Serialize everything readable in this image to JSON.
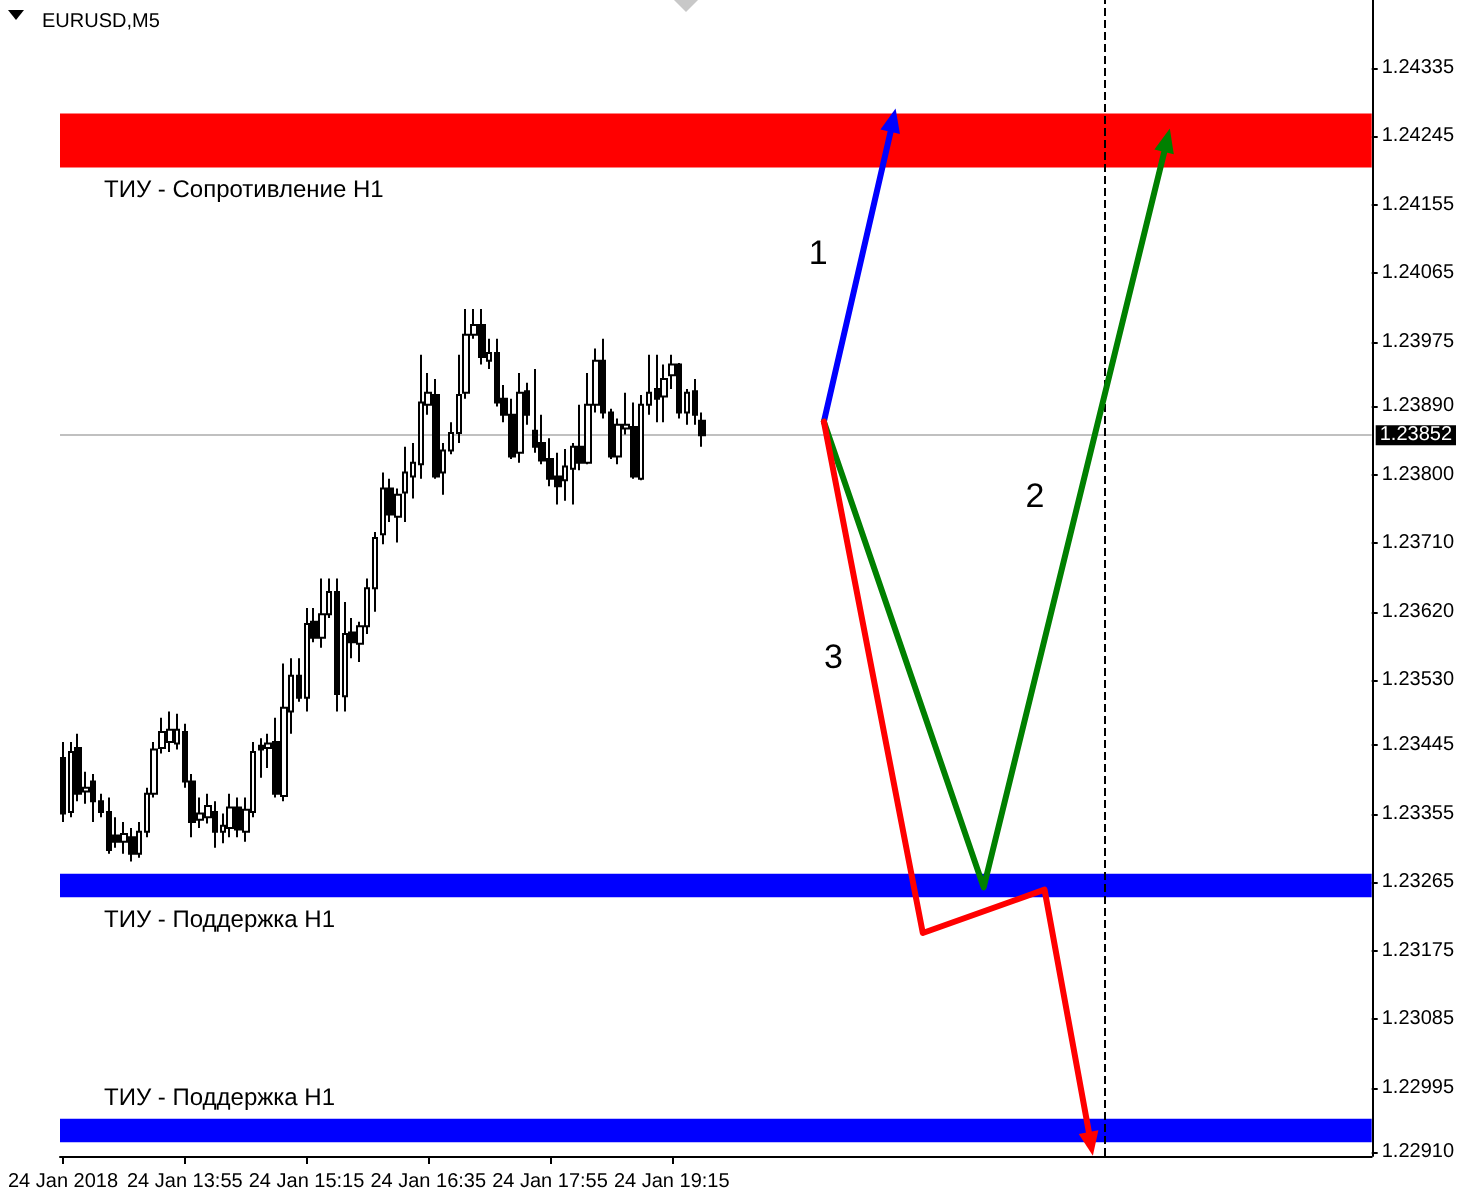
{
  "chart_data": {
    "type": "candlestick",
    "title": "EURUSD,M5",
    "color": "#000000",
    "x": [
      "2018-01-24T12:35",
      "2018-01-24T12:40",
      "2018-01-24T12:45",
      "2018-01-24T12:50",
      "2018-01-24T12:55",
      "2018-01-24T13:00",
      "2018-01-24T13:05",
      "2018-01-24T13:10",
      "2018-01-24T13:15",
      "2018-01-24T13:20",
      "2018-01-24T13:25",
      "2018-01-24T13:30",
      "2018-01-24T13:35",
      "2018-01-24T13:40",
      "2018-01-24T13:45",
      "2018-01-24T13:50",
      "2018-01-24T13:55",
      "2018-01-24T14:00",
      "2018-01-24T14:05",
      "2018-01-24T14:10",
      "2018-01-24T14:15",
      "2018-01-24T14:20",
      "2018-01-24T14:25",
      "2018-01-24T14:30",
      "2018-01-24T14:35",
      "2018-01-24T14:40",
      "2018-01-24T14:45",
      "2018-01-24T14:50",
      "2018-01-24T14:55",
      "2018-01-24T15:00",
      "2018-01-24T15:05",
      "2018-01-24T15:10",
      "2018-01-24T15:15",
      "2018-01-24T15:20",
      "2018-01-24T15:25",
      "2018-01-24T15:30",
      "2018-01-24T15:35",
      "2018-01-24T15:40",
      "2018-01-24T15:45",
      "2018-01-24T15:50",
      "2018-01-24T15:55",
      "2018-01-24T16:00",
      "2018-01-24T16:05",
      "2018-01-24T16:10",
      "2018-01-24T16:15",
      "2018-01-24T16:20",
      "2018-01-24T16:25",
      "2018-01-24T16:30",
      "2018-01-24T16:35",
      "2018-01-24T16:40",
      "2018-01-24T16:45",
      "2018-01-24T16:50",
      "2018-01-24T16:55",
      "2018-01-24T17:00",
      "2018-01-24T17:05",
      "2018-01-24T17:10",
      "2018-01-24T17:15",
      "2018-01-24T17:20",
      "2018-01-24T17:25",
      "2018-01-24T17:30",
      "2018-01-24T17:35",
      "2018-01-24T17:40",
      "2018-01-24T17:45",
      "2018-01-24T17:50",
      "2018-01-24T17:55",
      "2018-01-24T18:00",
      "2018-01-24T18:05",
      "2018-01-24T18:10",
      "2018-01-24T18:15",
      "2018-01-24T18:20",
      "2018-01-24T18:25",
      "2018-01-24T18:30",
      "2018-01-24T18:35",
      "2018-01-24T18:40",
      "2018-01-24T18:45",
      "2018-01-24T18:50",
      "2018-01-24T18:55",
      "2018-01-24T19:00",
      "2018-01-24T19:05",
      "2018-01-24T19:10",
      "2018-01-24T19:15",
      "2018-01-24T19:20",
      "2018-01-24T19:25",
      "2018-01-24T19:30",
      "2018-01-24T19:35"
    ],
    "ohlc": [
      [
        1.23428,
        1.23449,
        1.23344,
        1.23355
      ],
      [
        1.23357,
        1.23449,
        1.2335,
        1.23436
      ],
      [
        1.23441,
        1.2346,
        1.23371,
        1.23381
      ],
      [
        1.23384,
        1.2341,
        1.23368,
        1.23389
      ],
      [
        1.23397,
        1.23407,
        1.23344,
        1.23371
      ],
      [
        1.23371,
        1.23381,
        1.2335,
        1.23357
      ],
      [
        1.23357,
        1.23376,
        1.23302,
        1.23307
      ],
      [
        1.23326,
        1.2335,
        1.2331,
        1.23318
      ],
      [
        1.23318,
        1.23344,
        1.23302,
        1.23328
      ],
      [
        1.23324,
        1.23336,
        1.23292,
        1.23302
      ],
      [
        1.23302,
        1.23344,
        1.23297,
        1.23331
      ],
      [
        1.23331,
        1.23389,
        1.23324,
        1.23381
      ],
      [
        1.23381,
        1.23449,
        1.23376,
        1.23439
      ],
      [
        1.23441,
        1.23481,
        1.23434,
        1.23462
      ],
      [
        1.23449,
        1.23489,
        1.23436,
        1.23465
      ],
      [
        1.23447,
        1.23486,
        1.23439,
        1.23465
      ],
      [
        1.23462,
        1.23473,
        1.23389,
        1.23397
      ],
      [
        1.23397,
        1.23407,
        1.23324,
        1.23344
      ],
      [
        1.23347,
        1.23376,
        1.23336,
        1.23355
      ],
      [
        1.2335,
        1.23381,
        1.23342,
        1.23365
      ],
      [
        1.23357,
        1.23371,
        1.2331,
        1.23331
      ],
      [
        1.23331,
        1.23355,
        1.23316,
        1.23339
      ],
      [
        1.23336,
        1.23381,
        1.23324,
        1.23363
      ],
      [
        1.23363,
        1.23376,
        1.23324,
        1.23334
      ],
      [
        1.23331,
        1.23376,
        1.23318,
        1.2336
      ],
      [
        1.23357,
        1.23449,
        1.2335,
        1.23436
      ],
      [
        1.23444,
        1.23454,
        1.23402,
        1.23439
      ],
      [
        1.23441,
        1.2346,
        1.23415,
        1.23447
      ],
      [
        1.23449,
        1.23481,
        1.23376,
        1.23381
      ],
      [
        1.23378,
        1.23552,
        1.23371,
        1.23494
      ],
      [
        1.23489,
        1.23559,
        1.2346,
        1.23536
      ],
      [
        1.23536,
        1.23559,
        1.23502,
        1.23507
      ],
      [
        1.23507,
        1.23625,
        1.23489,
        1.23604
      ],
      [
        1.23607,
        1.23625,
        1.2358,
        1.23586
      ],
      [
        1.23586,
        1.23664,
        1.23573,
        1.23617
      ],
      [
        1.23617,
        1.23664,
        1.23612,
        1.23646
      ],
      [
        1.23646,
        1.23664,
        1.23489,
        1.23512
      ],
      [
        1.23509,
        1.23633,
        1.23489,
        1.23591
      ],
      [
        1.23593,
        1.23612,
        1.23559,
        1.2358
      ],
      [
        1.23578,
        1.23607,
        1.23554,
        1.23601
      ],
      [
        1.23601,
        1.23664,
        1.23591,
        1.23651
      ],
      [
        1.23651,
        1.23725,
        1.2362,
        1.23717
      ],
      [
        1.23722,
        1.23803,
        1.23709,
        1.23782
      ],
      [
        1.23782,
        1.23795,
        1.23738,
        1.23748
      ],
      [
        1.23745,
        1.23782,
        1.23711,
        1.23774
      ],
      [
        1.23777,
        1.23837,
        1.23738,
        1.23803
      ],
      [
        1.23798,
        1.23842,
        1.23769,
        1.23816
      ],
      [
        1.23814,
        1.23958,
        1.23795,
        1.23895
      ],
      [
        1.23892,
        1.23934,
        1.23879,
        1.23908
      ],
      [
        1.23905,
        1.23926,
        1.23795,
        1.23798
      ],
      [
        1.23803,
        1.23842,
        1.23774,
        1.23832
      ],
      [
        1.23832,
        1.23869,
        1.23827,
        1.23855
      ],
      [
        1.23855,
        1.23958,
        1.23842,
        1.23905
      ],
      [
        1.23908,
        1.24018,
        1.239,
        1.23984
      ],
      [
        1.23984,
        1.24018,
        1.23979,
        1.23997
      ],
      [
        1.23997,
        1.24018,
        1.23945,
        1.23955
      ],
      [
        1.2395,
        1.23979,
        1.23939,
        1.2396
      ],
      [
        1.2396,
        1.23979,
        1.2389,
        1.23895
      ],
      [
        1.239,
        1.23918,
        1.23869,
        1.23879
      ],
      [
        1.23879,
        1.239,
        1.23821,
        1.23824
      ],
      [
        1.23829,
        1.23934,
        1.23816,
        1.23908
      ],
      [
        1.2391,
        1.23921,
        1.23866,
        1.23879
      ],
      [
        1.23858,
        1.23939,
        1.23829,
        1.23837
      ],
      [
        1.23842,
        1.23879,
        1.23814,
        1.23819
      ],
      [
        1.23821,
        1.23848,
        1.23785,
        1.23795
      ],
      [
        1.23798,
        1.23829,
        1.23761,
        1.23785
      ],
      [
        1.23793,
        1.23834,
        1.23766,
        1.23811
      ],
      [
        1.23808,
        1.23842,
        1.23761,
        1.23837
      ],
      [
        1.23837,
        1.23892,
        1.23806,
        1.23816
      ],
      [
        1.23816,
        1.23934,
        1.23814,
        1.23892
      ],
      [
        1.23892,
        1.23966,
        1.23882,
        1.2395
      ],
      [
        1.2395,
        1.23979,
        1.23874,
        1.23882
      ],
      [
        1.23882,
        1.23887,
        1.23821,
        1.23824
      ],
      [
        1.23824,
        1.23874,
        1.23814,
        1.23866
      ],
      [
        1.23861,
        1.23908,
        1.23853,
        1.23866
      ],
      [
        1.23863,
        1.23895,
        1.23795,
        1.23798
      ],
      [
        1.23795,
        1.23905,
        1.23793,
        1.23892
      ],
      [
        1.23892,
        1.23958,
        1.23879,
        1.23908
      ],
      [
        1.23913,
        1.23958,
        1.23869,
        1.239
      ],
      [
        1.23903,
        1.23945,
        1.23869,
        1.23926
      ],
      [
        1.23931,
        1.23958,
        1.23913,
        1.23945
      ],
      [
        1.23945,
        1.23947,
        1.23874,
        1.23882
      ],
      [
        1.23882,
        1.23913,
        1.23866,
        1.23908
      ],
      [
        1.2391,
        1.23926,
        1.23866,
        1.23879
      ],
      [
        1.23871,
        1.23882,
        1.23837,
        1.23852
      ]
    ],
    "series": [
      {
        "type": "line",
        "color": "#0000ff",
        "x": [
          "2018-01-24T20:55",
          "2018-01-24T21:40"
        ],
        "values": [
          1.2387,
          1.24261
        ]
      },
      {
        "type": "line",
        "color": "#008000",
        "x": [
          "2018-01-24T20:55",
          "2018-01-24T22:40",
          "2018-01-25T00:40"
        ],
        "values": [
          1.2387,
          1.23258,
          1.24235
        ]
      },
      {
        "type": "line",
        "color": "#ff0000",
        "x": [
          "2018-01-24T20:55",
          "2018-01-24T22:00",
          "2018-01-24T23:20",
          "2018-01-24T23:50"
        ],
        "values": [
          1.2387,
          1.23198,
          1.23255,
          1.22927
        ]
      }
    ],
    "annotations": [
      "1",
      "2",
      "3"
    ],
    "bands": [
      {
        "axis": "y",
        "from": 1.24204,
        "to": 1.24275,
        "label": "ТИУ - Сопротивление H1",
        "color": "#ff0000"
      },
      {
        "axis": "y",
        "from": 1.23245,
        "to": 1.23276,
        "label": "ТИУ - Поддержка H1",
        "color": "#0000ff"
      },
      {
        "axis": "y",
        "from": 1.22923,
        "to": 1.22954,
        "label": "ТИУ - Поддержка H1",
        "color": "#0000ff"
      }
    ],
    "ref_lines": [
      {
        "axis": "y",
        "value": 1.23852,
        "label": "1.23852",
        "color": "#c0c0c0"
      },
      {
        "axis": "x",
        "value": "2018-01-25T00:00",
        "label": null,
        "color": "#000000",
        "line_style": "dashed"
      }
    ],
    "xlim": [
      "2018-01-24T12:33",
      "2018-01-25T02:55"
    ],
    "xticks": [
      {
        "value": "2018-01-24T12:35",
        "label": "24 Jan 2018"
      },
      {
        "value": "2018-01-24T13:55",
        "label": "24 Jan 13:55"
      },
      {
        "value": "2018-01-24T15:15",
        "label": "24 Jan 15:15"
      },
      {
        "value": "2018-01-24T16:35",
        "label": "24 Jan 16:35"
      },
      {
        "value": "2018-01-24T17:55",
        "label": "24 Jan 17:55"
      },
      {
        "value": "2018-01-24T19:15",
        "label": "24 Jan 19:15"
      }
    ],
    "ylim": [
      1.22905,
      1.24424
    ],
    "yticks": [
      {
        "value": 1.2291,
        "label": "1.22910"
      },
      1.22995,
      1.23085,
      1.23175,
      1.23265,
      1.23355,
      1.23445,
      {
        "value": 1.2353,
        "label": "1.23530"
      },
      {
        "value": 1.2362,
        "label": "1.23620"
      },
      {
        "value": 1.2371,
        "label": "1.23710"
      },
      {
        "value": 1.238,
        "label": "1.23800"
      },
      {
        "value": 1.2389,
        "label": "1.23890"
      },
      1.23975,
      1.24065,
      1.24155,
      1.24245,
      1.24335
    ],
    "grid": false
  }
}
